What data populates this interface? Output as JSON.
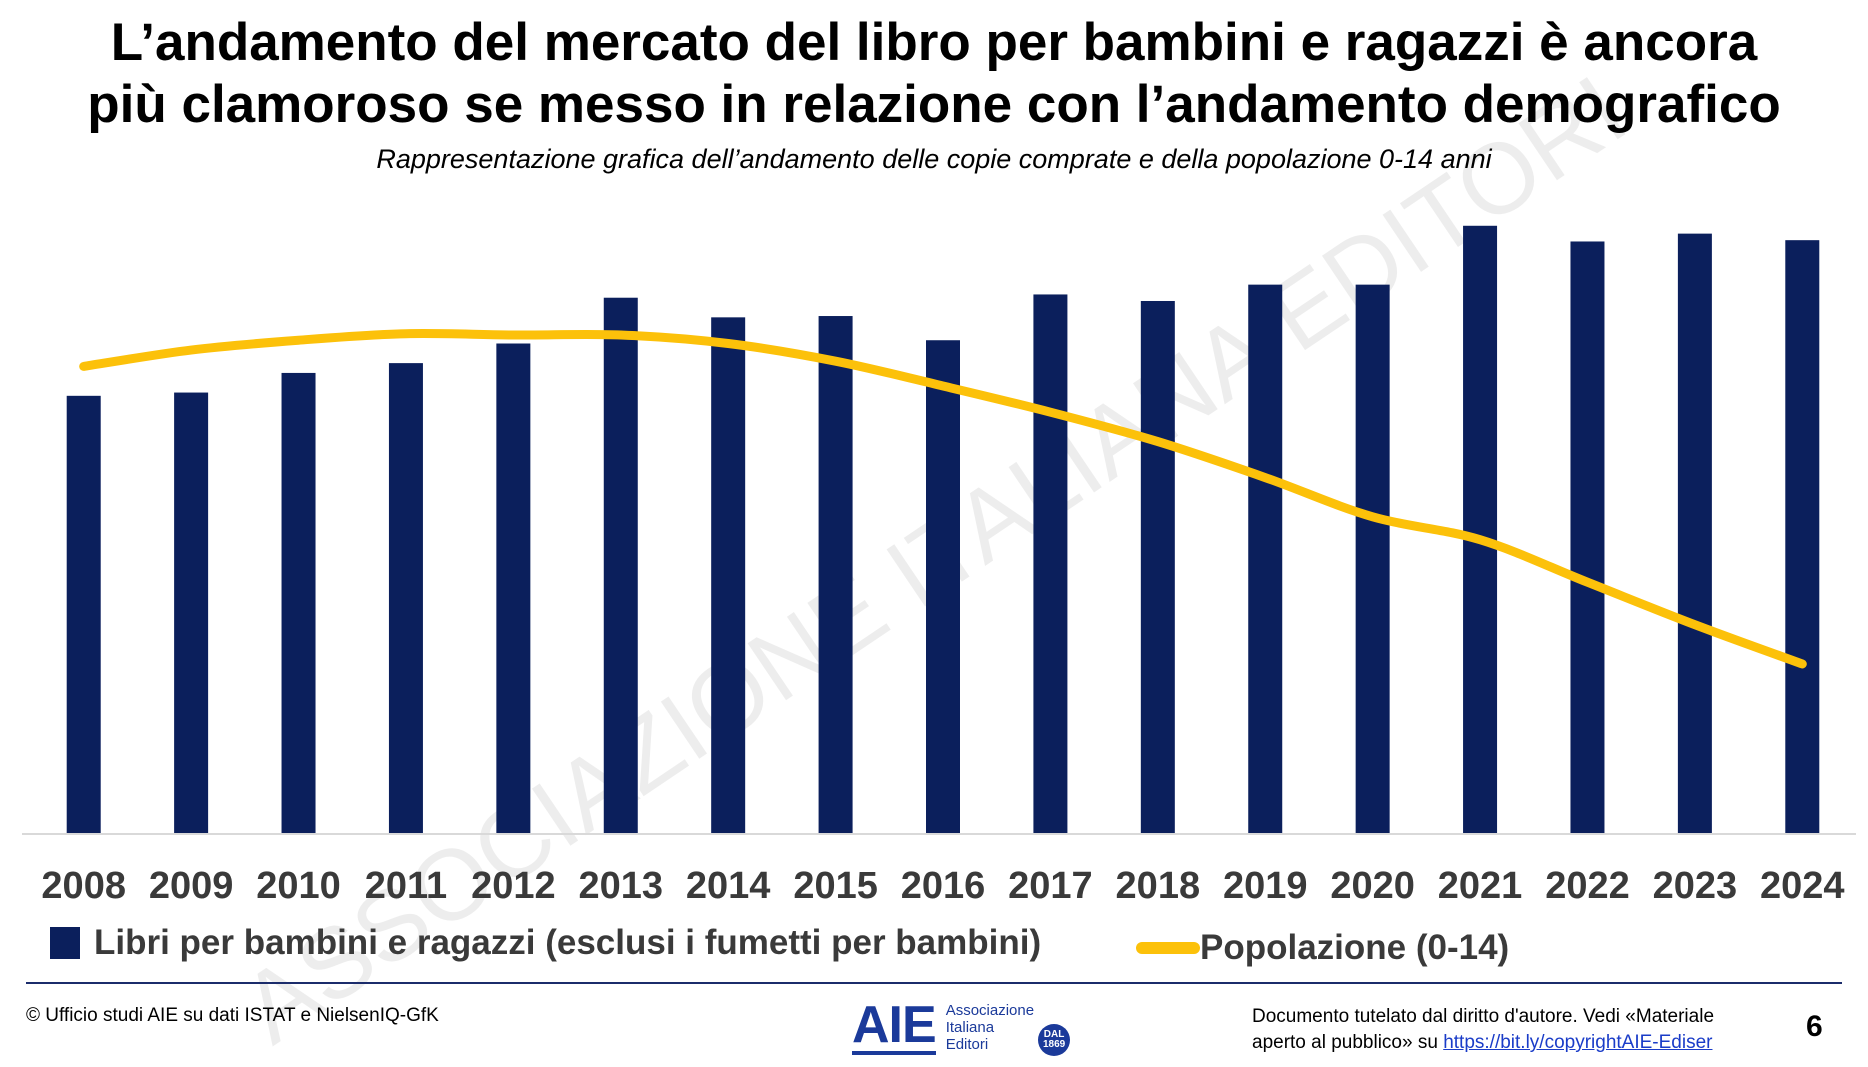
{
  "title_line1": "L’andamento del mercato del libro per bambini e ragazzi è ancora",
  "title_line2": "più clamoroso se messo in relazione con l’andamento demografico",
  "subtitle": "Rappresentazione grafica dell’andamento delle copie comprate e della popolazione 0-14 anni",
  "watermark": "ASSOCIAZIONE ITALIANA EDITORI",
  "chart_data": {
    "type": "bar",
    "categories": [
      "2008",
      "2009",
      "2010",
      "2011",
      "2012",
      "2013",
      "2014",
      "2015",
      "2016",
      "2017",
      "2018",
      "2019",
      "2020",
      "2021",
      "2022",
      "2023",
      "2024"
    ],
    "series": [
      {
        "name": "Libri per bambini e ragazzi (esclusi i fumetti per bambini)",
        "type": "bar",
        "values": [
          67.0,
          67.5,
          70.5,
          72.0,
          75.0,
          82.0,
          79.0,
          79.2,
          75.5,
          82.5,
          81.5,
          84.0,
          84.0,
          93.0,
          90.6,
          91.8,
          90.8
        ]
      },
      {
        "name": "Popolazione (0-14)",
        "type": "line",
        "values": [
          71.5,
          74.0,
          75.5,
          76.5,
          76.3,
          76.3,
          75.0,
          72.3,
          68.5,
          64.5,
          60.0,
          54.5,
          48.5,
          45.0,
          38.5,
          32.0,
          26.0
        ]
      }
    ],
    "ylim": [
      0,
      100
    ],
    "grid": false,
    "legend_position": "bottom",
    "colors": {
      "bar": "#0b1f5c",
      "line": "#fcc10a",
      "baseline": "#d9d9d9",
      "tick_label": "#3a3a3a"
    }
  },
  "legend": {
    "bar_label": "Libri per bambini e ragazzi (esclusi i fumetti per bambini)",
    "line_label": "Popolazione (0-14)"
  },
  "footer": {
    "source": "© Ufficio studi AIE su dati ISTAT e NielsenIQ-GfK",
    "rights_text": "Documento tutelato dal diritto d'autore. Vedi «Materiale aperto al pubblico» su",
    "rights_link": "https://bit.ly/copyrightAIE-Ediser",
    "page_number": "6"
  },
  "logo": {
    "mark": "AIE",
    "text_line1": "Associazione",
    "text_line2": "Italiana",
    "text_line3": "Editori",
    "seal_line1": "DAL",
    "seal_line2": "1869"
  }
}
